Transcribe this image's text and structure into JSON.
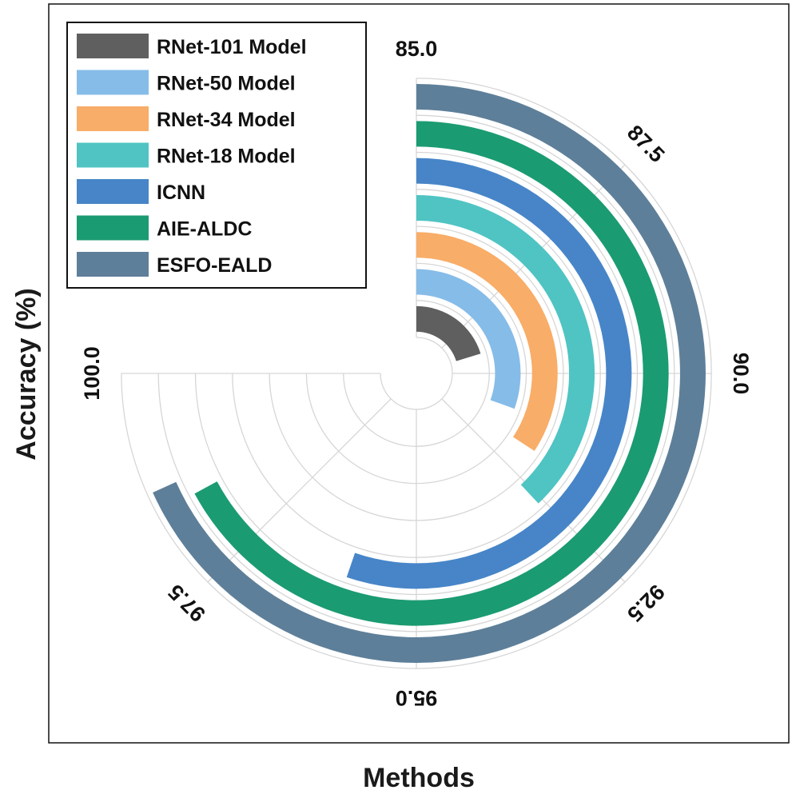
{
  "chart_data": {
    "type": "radial-bar",
    "xlabel": "Methods",
    "ylabel": "Accuracy (%)",
    "axis_range": [
      85.0,
      100.0
    ],
    "ticks": [
      85.0,
      87.5,
      90.0,
      92.5,
      95.0,
      97.5,
      100.0
    ],
    "tick_labels": [
      "85.0",
      "87.5",
      "90.0",
      "92.5",
      "95.0",
      "97.5",
      "100.0"
    ],
    "legend_position": "top-left",
    "series": [
      {
        "name": "RNet-101 Model",
        "value": 89.05,
        "color": "#5f5f5f"
      },
      {
        "name": "RNet-50 Model",
        "value": 91.1,
        "color": "#86bce8"
      },
      {
        "name": "RNet-34 Model",
        "value": 91.85,
        "color": "#f8ad68"
      },
      {
        "name": "RNet-18 Model",
        "value": 92.6,
        "color": "#4fc4c3"
      },
      {
        "name": "ICNN",
        "value": 96.05,
        "color": "#4785c8"
      },
      {
        "name": "AIE-ALDC",
        "value": 98.42,
        "color": "#1b9b72"
      },
      {
        "name": "ESFO-EALD",
        "value": 98.65,
        "color": "#5e7f99"
      }
    ]
  }
}
